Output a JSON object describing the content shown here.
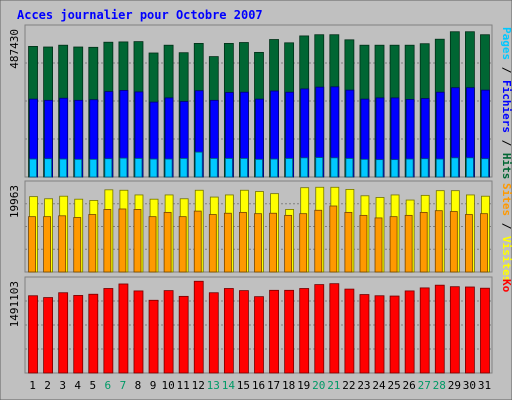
{
  "title": "Acces journalier pour Octobre 2007",
  "colors": {
    "background": "#c0c0c0",
    "title_text": "#0000ff",
    "hits": "#006633",
    "fichiers": "#0000ff",
    "pages": "#00c8ff",
    "visites": "#ffff00",
    "sites": "#ff9900",
    "ko": "#ff0000",
    "weekend_text": "#009966",
    "weekday_text": "#000000"
  },
  "chart_data": [
    {
      "type": "bar",
      "categories": [
        "1",
        "2",
        "3",
        "4",
        "5",
        "6",
        "7",
        "8",
        "9",
        "10",
        "11",
        "12",
        "13",
        "14",
        "15",
        "16",
        "17",
        "18",
        "19",
        "20",
        "21",
        "22",
        "23",
        "24",
        "25",
        "26",
        "27",
        "28",
        "29",
        "30",
        "31"
      ],
      "weekend_categories": [
        "6",
        "7",
        "13",
        "14",
        "20",
        "21",
        "27",
        "28"
      ],
      "ylabel_max": "487430",
      "ymax": 487430,
      "legend": [
        "Pages",
        "Fichiers",
        "Hits"
      ],
      "series": [
        {
          "name": "Hits",
          "values": [
            436000,
            434000,
            440000,
            434000,
            433000,
            450000,
            451000,
            452000,
            414000,
            440000,
            415000,
            446000,
            402000,
            446000,
            449000,
            416000,
            459000,
            448000,
            471000,
            475000,
            475000,
            458000,
            440000,
            440000,
            440000,
            440000,
            445000,
            460000,
            485000,
            485000,
            475000
          ]
        },
        {
          "name": "Fichiers",
          "values": [
            260000,
            256000,
            263000,
            256000,
            258000,
            285000,
            289000,
            284000,
            250000,
            264000,
            252000,
            288000,
            256000,
            282000,
            283000,
            260000,
            287000,
            283000,
            294000,
            300000,
            301000,
            290000,
            260000,
            264000,
            264000,
            259000,
            262000,
            283000,
            298000,
            298000,
            290000
          ]
        },
        {
          "name": "Pages",
          "values": [
            60000,
            61000,
            60000,
            59000,
            59000,
            61000,
            63000,
            62000,
            60000,
            60000,
            62000,
            83000,
            62000,
            62000,
            62000,
            59000,
            60000,
            62000,
            64000,
            65000,
            64000,
            62000,
            59000,
            58000,
            58000,
            60000,
            61000,
            60000,
            64000,
            64000,
            61000
          ]
        }
      ]
    },
    {
      "type": "bar",
      "categories": [
        "1",
        "2",
        "3",
        "4",
        "5",
        "6",
        "7",
        "8",
        "9",
        "10",
        "11",
        "12",
        "13",
        "14",
        "15",
        "16",
        "17",
        "18",
        "19",
        "20",
        "21",
        "22",
        "23",
        "24",
        "25",
        "26",
        "27",
        "28",
        "29",
        "30",
        "31"
      ],
      "ylabel_max": "19963",
      "ymax": 19963,
      "legend": [
        "Sites",
        "Visites"
      ],
      "series": [
        {
          "name": "Visites",
          "values": [
            17700,
            17200,
            17800,
            17100,
            16800,
            19300,
            19200,
            18100,
            17100,
            18100,
            17200,
            19200,
            17600,
            18100,
            19200,
            18900,
            18400,
            14700,
            19800,
            19900,
            19900,
            19400,
            17900,
            17500,
            18100,
            16900,
            18000,
            19100,
            19100,
            18100,
            17800
          ]
        },
        {
          "name": "Sites",
          "values": [
            13000,
            13000,
            13200,
            12800,
            13500,
            14700,
            14800,
            14700,
            13000,
            14000,
            13000,
            14300,
            13500,
            13800,
            14000,
            13700,
            13800,
            13300,
            13700,
            14500,
            15500,
            14000,
            13300,
            12700,
            13000,
            13300,
            14000,
            14400,
            14200,
            13500,
            13700
          ]
        }
      ]
    },
    {
      "type": "bar",
      "categories": [
        "1",
        "2",
        "3",
        "4",
        "5",
        "6",
        "7",
        "8",
        "9",
        "10",
        "11",
        "12",
        "13",
        "14",
        "15",
        "16",
        "17",
        "18",
        "19",
        "20",
        "21",
        "22",
        "23",
        "24",
        "25",
        "26",
        "27",
        "28",
        "29",
        "30",
        "31"
      ],
      "ylabel_max": "1491103",
      "ymax": 1491103,
      "legend": [
        "Ko"
      ],
      "series": [
        {
          "name": "Ko",
          "values": [
            1280000,
            1250000,
            1330000,
            1285000,
            1305000,
            1400000,
            1475000,
            1360000,
            1205000,
            1365000,
            1270000,
            1520000,
            1330000,
            1400000,
            1365000,
            1265000,
            1370000,
            1370000,
            1400000,
            1465000,
            1480000,
            1390000,
            1300000,
            1280000,
            1275000,
            1360000,
            1410000,
            1455000,
            1430000,
            1425000,
            1405000
          ]
        }
      ]
    }
  ]
}
